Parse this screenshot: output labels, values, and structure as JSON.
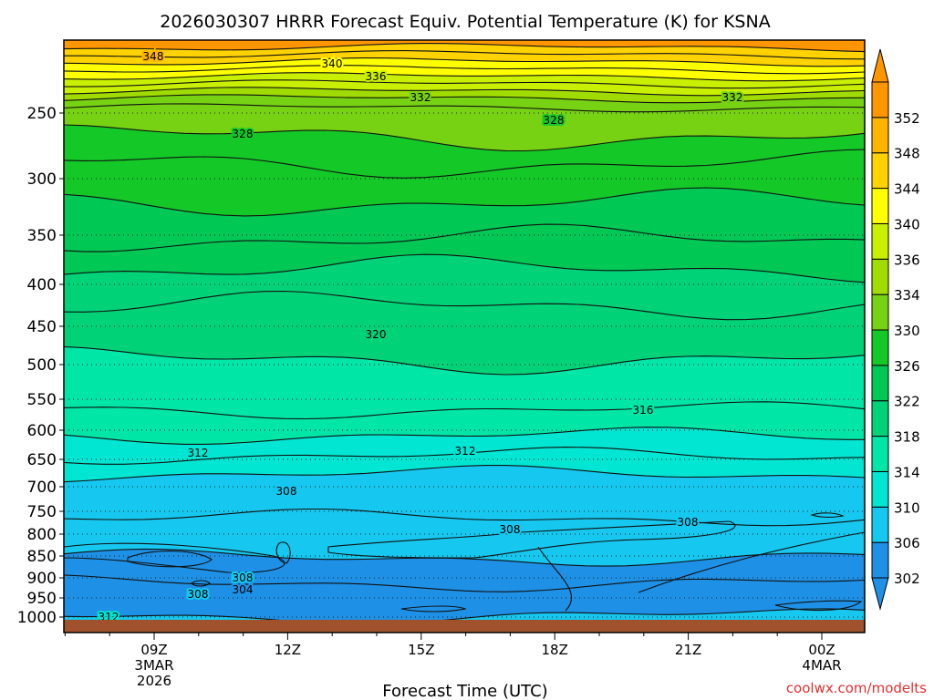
{
  "chart_data": {
    "type": "heatmap",
    "title": "2026030307 HRRR Forecast Equiv. Potential Temperature (K) for KSNA",
    "xlabel": "Forecast Time (UTC)",
    "ylabel": "",
    "credit": "coolwx.com/modelts",
    "x_ticks": [
      {
        "label": "09Z",
        "sub1": "3MAR",
        "sub2": "2026",
        "hour": 9
      },
      {
        "label": "12Z",
        "sub1": "",
        "sub2": "",
        "hour": 12
      },
      {
        "label": "15Z",
        "sub1": "",
        "sub2": "",
        "hour": 15
      },
      {
        "label": "18Z",
        "sub1": "",
        "sub2": "",
        "hour": 18
      },
      {
        "label": "21Z",
        "sub1": "",
        "sub2": "",
        "hour": 21
      },
      {
        "label": "00Z",
        "sub1": "4MAR",
        "sub2": "",
        "hour": 24
      }
    ],
    "y_ticks": [
      "250",
      "300",
      "350",
      "400",
      "450",
      "500",
      "550",
      "600",
      "650",
      "700",
      "750",
      "800",
      "850",
      "900",
      "950",
      "1000"
    ],
    "colorbar": {
      "levels": [
        302,
        306,
        310,
        314,
        318,
        322,
        326,
        330,
        334,
        336,
        340,
        344,
        348,
        352
      ],
      "colors": [
        "#1e90e6",
        "#16c8f0",
        "#00e6d2",
        "#00e6a6",
        "#00d278",
        "#00c855",
        "#14c828",
        "#78d214",
        "#a0dc00",
        "#c8f000",
        "#ffff00",
        "#ffd200",
        "#ffb400",
        "#ff9600"
      ]
    },
    "contour_labels": [
      {
        "text": "348",
        "level": 348
      },
      {
        "text": "340",
        "level": 340
      },
      {
        "text": "336",
        "level": 336
      },
      {
        "text": "332",
        "level": 332
      },
      {
        "text": "332",
        "level": 332
      },
      {
        "text": "328",
        "level": 328
      },
      {
        "text": "328",
        "level": 328
      },
      {
        "text": "320",
        "level": 320
      },
      {
        "text": "316",
        "level": 316
      },
      {
        "text": "312",
        "level": 312
      },
      {
        "text": "312",
        "level": 312
      },
      {
        "text": "308",
        "level": 308
      },
      {
        "text": "308",
        "level": 308
      },
      {
        "text": "308",
        "level": 308
      },
      {
        "text": "308",
        "level": 308
      },
      {
        "text": "308",
        "level": 308
      },
      {
        "text": "304",
        "level": 304
      },
      {
        "text": "312",
        "level": 312
      }
    ],
    "ground_color": "#a0522d"
  }
}
